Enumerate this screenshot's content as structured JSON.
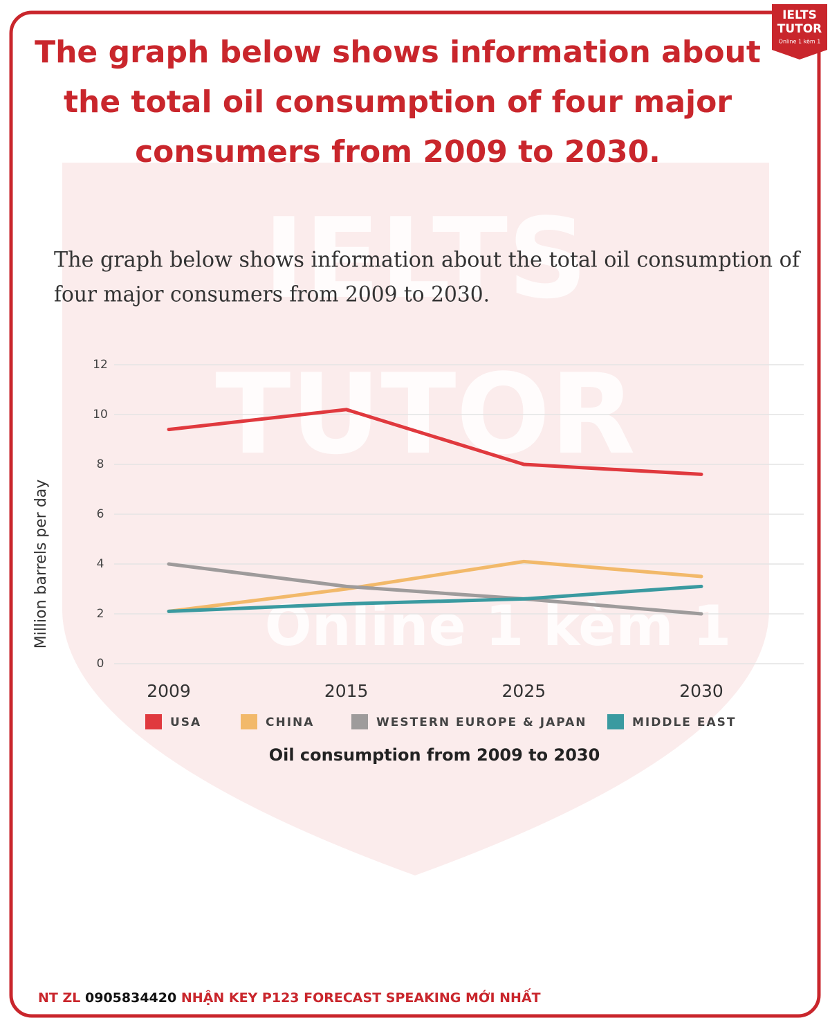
{
  "headline": [
    "The graph below shows information about",
    "the total oil consumption of four major",
    "consumers from 2009 to 2030."
  ],
  "logo": [
    "IELTS",
    "TUTOR",
    "Online 1 kèm 1"
  ],
  "watermark": [
    "IELTS",
    "TUTOR",
    "Online 1 kèm 1"
  ],
  "prompt": [
    "The graph below shows information about the total oil consumption of",
    "four major consumers from 2009 to 2030."
  ],
  "footer": [
    "NT ZL",
    "0905834420",
    "NHẬN KEY P123 FORECAST SPEAKING MỚI NHẤT"
  ],
  "chart_data": {
    "type": "line",
    "title": "Oil consumption from 2009 to 2030",
    "y_label": "Million barrels per day",
    "categories": [
      "2009",
      "2015",
      "2025",
      "2030"
    ],
    "series": [
      {
        "name": "USA",
        "color": "#e0393e",
        "values": [
          9.4,
          10.2,
          8.0,
          7.6
        ]
      },
      {
        "name": "CHINA",
        "color": "#f2b96a",
        "values": [
          2.1,
          3.0,
          4.1,
          3.5
        ]
      },
      {
        "name": "WESTERN EUROPE & JAPAN",
        "color": "#9e9b9b",
        "values": [
          4.0,
          3.1,
          2.6,
          2.0
        ]
      },
      {
        "name": "MIDDLE EAST",
        "color": "#3a9aa0",
        "values": [
          2.1,
          2.4,
          2.6,
          3.1
        ]
      }
    ],
    "ylim": [
      0,
      12
    ],
    "yticks": [
      0,
      2,
      4,
      6,
      8,
      10,
      12
    ],
    "grid": true
  }
}
